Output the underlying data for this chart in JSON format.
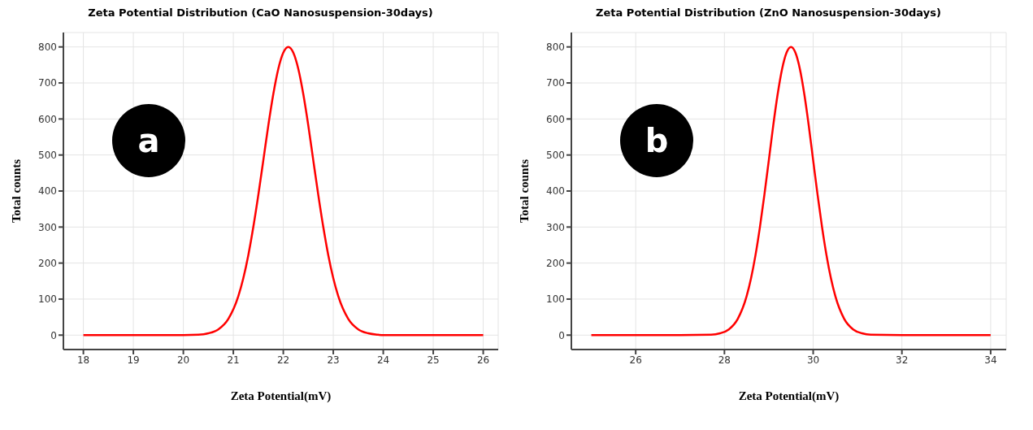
{
  "chart_data": [
    {
      "type": "line",
      "title": "Zeta Potential Distribution (CaO Nanosuspension-30days)",
      "xlabel": "Zeta Potential(mV)",
      "ylabel": "Total counts",
      "annotations": [
        "a"
      ],
      "x": [
        18,
        19,
        20,
        20.3,
        20.5,
        20.7,
        20.9,
        21.1,
        21.2,
        21.3,
        21.4,
        21.5,
        21.6,
        21.7,
        21.8,
        21.9,
        22.0,
        22.1,
        22.2,
        22.3,
        22.4,
        22.5,
        22.6,
        22.7,
        22.8,
        22.9,
        23.0,
        23.1,
        23.3,
        23.5,
        23.7,
        23.9,
        24,
        25,
        26
      ],
      "series": [
        {
          "color": "#ff0000",
          "values": [
            0,
            0,
            0,
            1,
            5,
            16,
            45,
            108,
            158,
            222,
            300,
            389,
            485,
            582,
            669,
            739,
            784,
            800,
            784,
            739,
            669,
            582,
            485,
            389,
            300,
            222,
            158,
            108,
            45,
            16,
            5,
            1,
            0,
            0,
            0
          ]
        }
      ],
      "xlim": [
        17.6,
        26.3
      ],
      "xticks": [
        18,
        19,
        20,
        21,
        22,
        23,
        24,
        25,
        26
      ],
      "ylim": [
        -40,
        840
      ],
      "yticks": [
        0,
        100,
        200,
        300,
        400,
        500,
        600,
        700,
        800
      ],
      "grid": true,
      "legend": false,
      "marker": "none",
      "line_style": "solid"
    },
    {
      "type": "line",
      "title": "Zeta Potential Distribution (ZnO Nanosuspension-30days)",
      "xlabel": "Zeta Potential(mV)",
      "ylabel": "Total counts",
      "annotations": [
        "b"
      ],
      "x": [
        25,
        26,
        27,
        27.7,
        27.9,
        28.1,
        28.3,
        28.5,
        28.6,
        28.7,
        28.8,
        28.9,
        29.0,
        29.1,
        29.2,
        29.3,
        29.4,
        29.5,
        29.6,
        29.7,
        29.8,
        29.9,
        30.0,
        30.1,
        30.2,
        30.3,
        30.4,
        30.5,
        30.7,
        30.9,
        31.1,
        31.3,
        32,
        33,
        34
      ],
      "series": [
        {
          "color": "#ff0000",
          "values": [
            0,
            0,
            0,
            1,
            5,
            16,
            45,
            108,
            158,
            222,
            300,
            389,
            485,
            582,
            669,
            739,
            784,
            800,
            784,
            739,
            669,
            582,
            485,
            389,
            300,
            222,
            158,
            108,
            45,
            16,
            5,
            1,
            0,
            0,
            0
          ]
        }
      ],
      "xlim": [
        24.55,
        34.35
      ],
      "xticks": [
        26,
        28,
        30,
        32,
        34
      ],
      "ylim": [
        -40,
        840
      ],
      "yticks": [
        0,
        100,
        200,
        300,
        400,
        500,
        600,
        700,
        800
      ],
      "grid": true,
      "legend": false,
      "marker": "none",
      "line_style": "solid"
    }
  ]
}
